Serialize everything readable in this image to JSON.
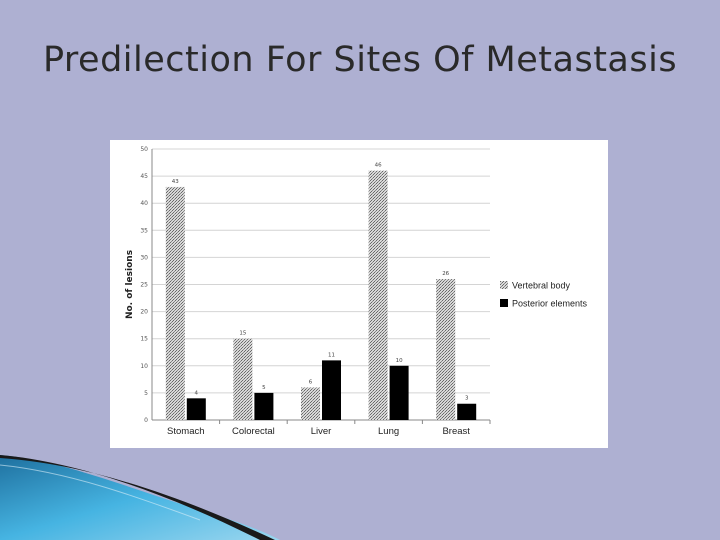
{
  "slide": {
    "title": "Predilection For Sites Of Metastasis"
  },
  "colors": {
    "background": "#aeb0d2",
    "vertebral_body": "#b8b8b8",
    "posterior_elements": "#000000",
    "accent_blue": "#3aa6d8"
  },
  "chart_data": {
    "type": "bar",
    "categories": [
      "Stomach",
      "Colorectal",
      "Liver",
      "Lung",
      "Breast"
    ],
    "series": [
      {
        "name": "Vertebral body",
        "values": [
          43,
          15,
          6,
          46,
          26
        ]
      },
      {
        "name": "Posterior elements",
        "values": [
          4,
          5,
          11,
          10,
          3
        ]
      }
    ],
    "ylabel": "No. of lesions",
    "ylim": [
      0,
      50
    ],
    "yticks": [
      0,
      5,
      10,
      15,
      20,
      25,
      30,
      35,
      40,
      45,
      50
    ],
    "grid": true,
    "legend": "right"
  }
}
